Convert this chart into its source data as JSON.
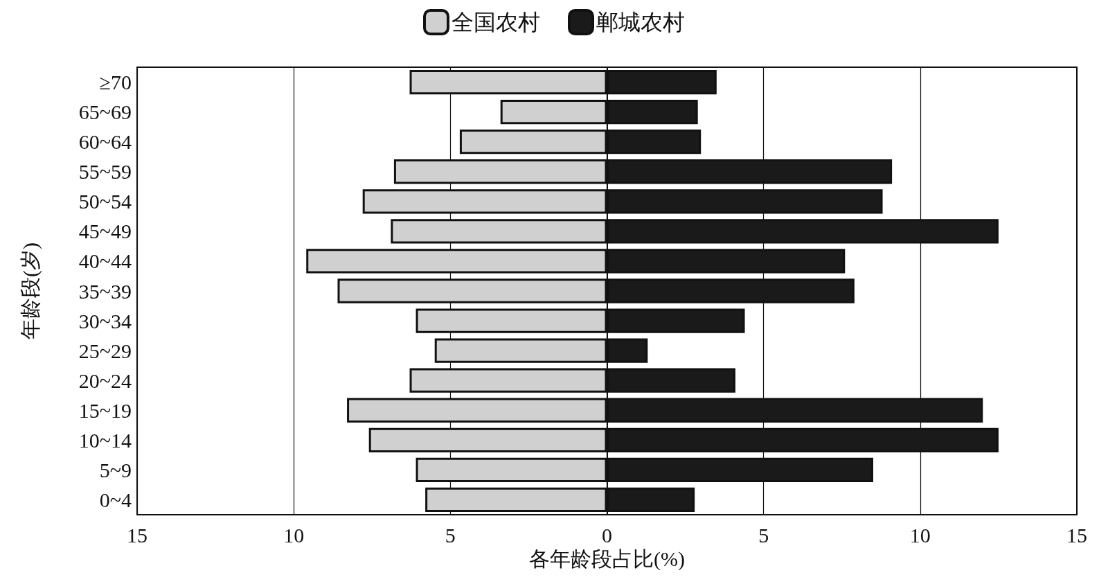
{
  "chart_data": {
    "type": "bar",
    "orientation": "horizontal",
    "stacked": true,
    "xlabel": "各年龄段占比(%)",
    "ylabel": "年龄段(岁)",
    "categories": [
      "≥70",
      "65~69",
      "60~64",
      "55~59",
      "50~54",
      "45~49",
      "40~44",
      "35~39",
      "30~34",
      "25~29",
      "20~24",
      "15~19",
      "10~14",
      "5~9",
      "0~4"
    ],
    "series": [
      {
        "name": "全国农村",
        "color": "#d0d0d0",
        "values": [
          -6.3,
          -3.4,
          -4.7,
          -6.8,
          -7.8,
          -6.9,
          -9.6,
          -8.6,
          -6.1,
          -5.5,
          -6.3,
          -8.3,
          -7.6,
          -6.1,
          -5.8
        ]
      },
      {
        "name": "郸城农村",
        "color": "#1a1a1a",
        "values": [
          3.5,
          2.9,
          3.0,
          9.1,
          8.8,
          12.5,
          7.6,
          7.9,
          4.4,
          1.3,
          4.1,
          12.0,
          12.5,
          8.5,
          2.8
        ]
      }
    ],
    "xlim": [
      -15,
      15
    ],
    "xticks": [
      {
        "value": -15,
        "label": "15"
      },
      {
        "value": -10,
        "label": "10"
      },
      {
        "value": -5,
        "label": "5"
      },
      0,
      5,
      10,
      15
    ],
    "grid": "x",
    "legend": "top"
  }
}
